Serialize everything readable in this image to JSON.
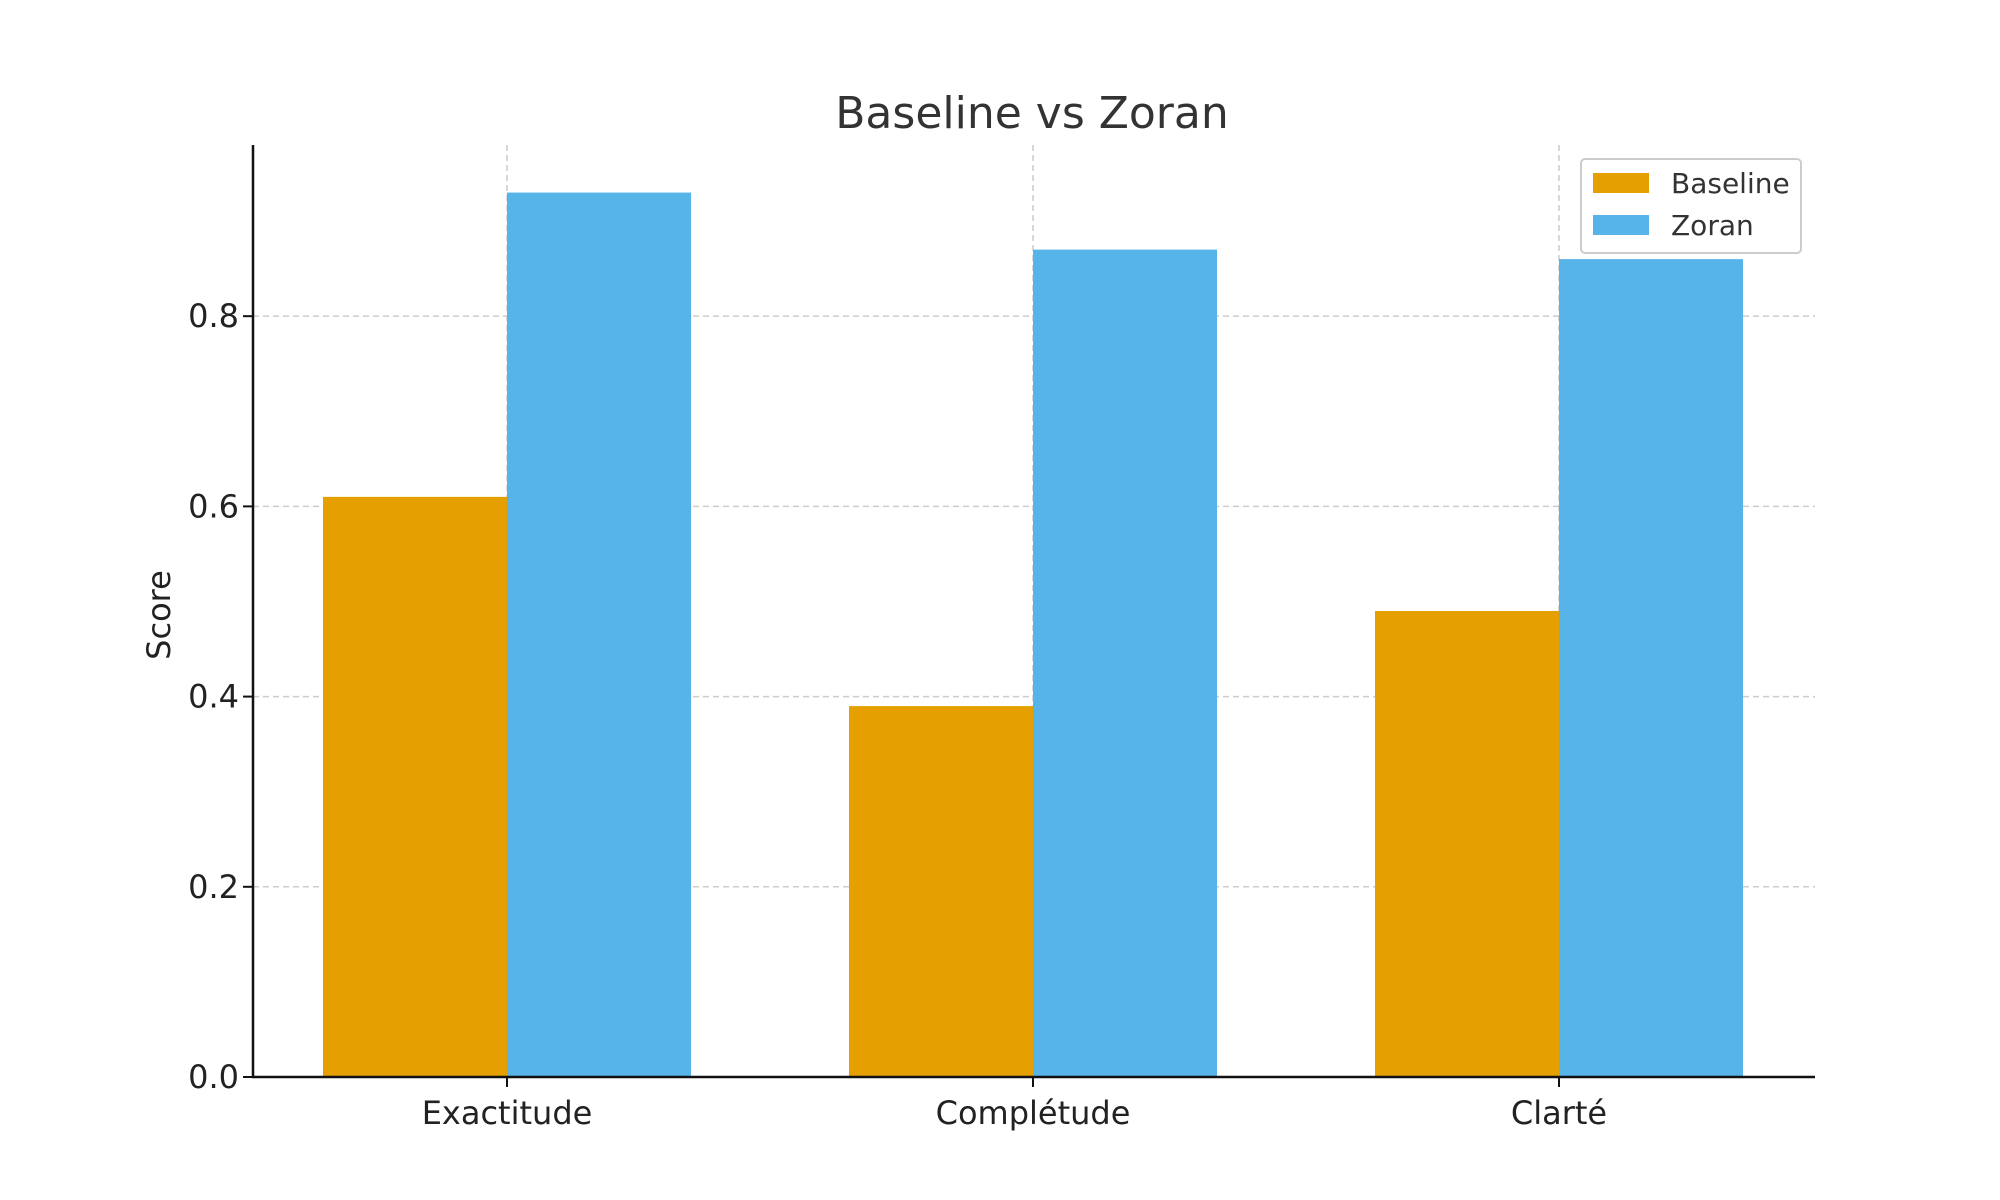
{
  "chart_data": {
    "type": "bar",
    "title": "Baseline vs Zoran",
    "xlabel": "",
    "ylabel": "Score",
    "categories": [
      "Exactitude",
      "Complétude",
      "Clarté"
    ],
    "series": [
      {
        "name": "Baseline",
        "values": [
          0.61,
          0.39,
          0.49
        ],
        "color": "#E69F00"
      },
      {
        "name": "Zoran",
        "values": [
          0.93,
          0.87,
          0.86
        ],
        "color": "#56B4E9"
      }
    ],
    "ylim": [
      0,
      0.98
    ],
    "yticks": [
      0.0,
      0.2,
      0.4,
      0.6,
      0.8
    ],
    "ytick_labels": [
      "0.0",
      "0.2",
      "0.4",
      "0.6",
      "0.8"
    ],
    "grid": true,
    "legend": "top-right"
  }
}
